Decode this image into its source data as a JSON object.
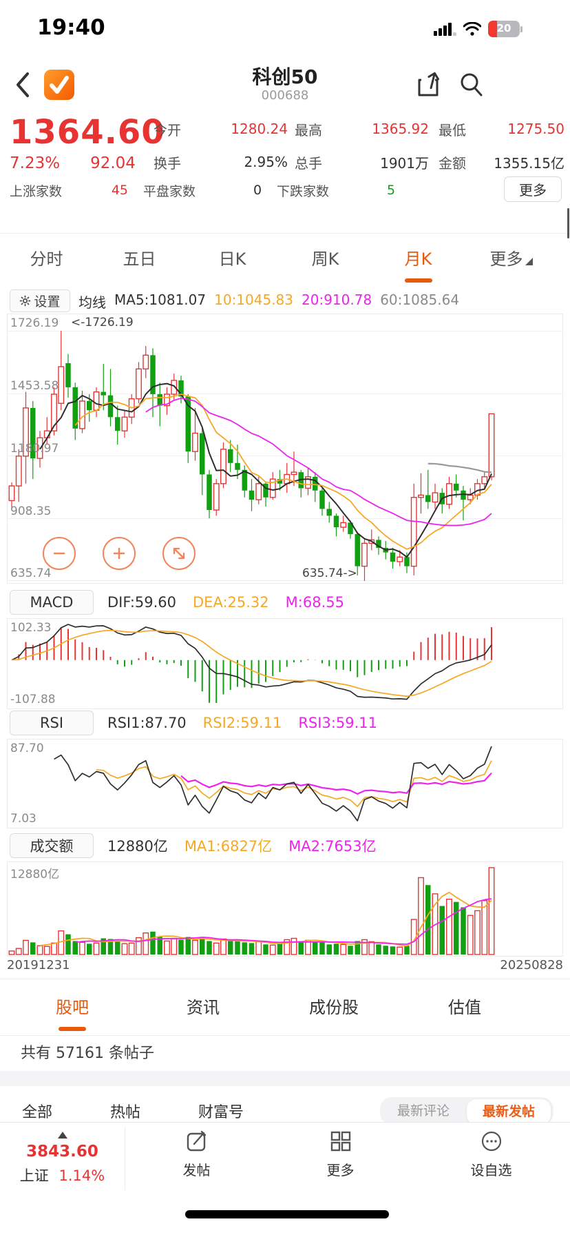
{
  "status_bar": {
    "time": "19:40",
    "battery_pct": "20"
  },
  "header": {
    "title": "科创50",
    "code": "000688"
  },
  "quote": {
    "price": "1364.60",
    "change_pct": "7.23%",
    "change": "92.04",
    "fields": [
      {
        "label": "今开",
        "value": "1280.24"
      },
      {
        "label": "最高",
        "value": "1365.92"
      },
      {
        "label": "最低",
        "value": "1275.50"
      },
      {
        "label": "换手",
        "value": "2.95%"
      },
      {
        "label": "总手",
        "value": "1901万"
      },
      {
        "label": "金额",
        "value": "1355.15亿"
      }
    ],
    "stats": [
      {
        "label": "上涨家数",
        "value": "45"
      },
      {
        "label": "平盘家数",
        "value": "0"
      },
      {
        "label": "下跌家数",
        "value": "5"
      }
    ],
    "more_label": "更多"
  },
  "period_tabs": {
    "items": [
      "分时",
      "五日",
      "日K",
      "周K",
      "月K",
      "更多"
    ],
    "active": "月K"
  },
  "ma_bar": {
    "settings_label": "设置",
    "group_label": "均线",
    "ma5": "MA5:1081.07",
    "ma10": "10:1045.83",
    "ma20": "20:910.78",
    "ma60": "60:1085.64"
  },
  "macd_header": {
    "button": "MACD",
    "dif": "DIF:59.60",
    "dea": "DEA:25.32",
    "m": "M:68.55",
    "ymax": "102.33",
    "ymin": "-107.88"
  },
  "rsi_header": {
    "button": "RSI",
    "rsi1": "RSI1:87.70",
    "rsi2": "RSI2:59.11",
    "rsi3": "RSI3:59.11",
    "ymax": "87.70",
    "ymin": "7.03"
  },
  "vol_header": {
    "button": "成交额",
    "current": "12880亿",
    "ma1": "MA1:6827亿",
    "ma2": "MA2:7653亿",
    "ylabel": "12880亿"
  },
  "section_tabs": {
    "items": [
      "股吧",
      "资讯",
      "成份股",
      "估值"
    ],
    "active": "股吧"
  },
  "posts": {
    "count_text": "共有 57161 条帖子"
  },
  "filter_bar": {
    "items": [
      "全部",
      "热帖",
      "财富号"
    ],
    "active": "全部",
    "sort_options": [
      "最新评论",
      "最新发帖"
    ],
    "sort_active": "最新发帖"
  },
  "bottom_bar": {
    "index_value": "3843.60",
    "index_name": "上证",
    "index_pct": "1.14%",
    "actions": [
      "发帖",
      "更多",
      "设自选"
    ]
  },
  "colors": {
    "red": "#e83333",
    "green": "#12a012",
    "accent_orange": "#e8590c",
    "ma10_orange": "#f7a823",
    "ma20_magenta": "#ee22ee",
    "ma60_gray": "#999999",
    "line_dark": "#2e2e2e"
  },
  "chart_data": {
    "type": "candlestick",
    "title": "科创50 月K",
    "date_start": "20191231",
    "date_end": "20250828",
    "y_axis_labels": [
      "1726.19",
      "1453.58",
      "1180.97",
      "908.35",
      "635.74"
    ],
    "y_range": [
      635.74,
      1726.19
    ],
    "high_annotation": "<-1726.19",
    "low_annotation": "635.74->",
    "legend": {
      "ma5": "dark",
      "ma10": "orange",
      "ma20": "magenta",
      "ma60": "gray"
    },
    "volume_max_yi": 12880,
    "candles_ohlcv": [
      [
        986,
        1065,
        955,
        1050,
        520
      ],
      [
        1050,
        1210,
        980,
        1180,
        900
      ],
      [
        1180,
        1460,
        1060,
        1390,
        2100
      ],
      [
        1390,
        1420,
        1080,
        1170,
        1800
      ],
      [
        1170,
        1290,
        1130,
        1260,
        1300
      ],
      [
        1260,
        1350,
        1230,
        1290,
        1200
      ],
      [
        1290,
        1480,
        1270,
        1450,
        1700
      ],
      [
        1410,
        1726.19,
        1380,
        1570,
        3500
      ],
      [
        1585,
        1625,
        1435,
        1480,
        3000
      ],
      [
        1480,
        1500,
        1250,
        1300,
        2000
      ],
      [
        1300,
        1465,
        1280,
        1420,
        1800
      ],
      [
        1420,
        1450,
        1330,
        1380,
        1600
      ],
      [
        1380,
        1480,
        1350,
        1460,
        1700
      ],
      [
        1460,
        1582,
        1380,
        1445,
        2400
      ],
      [
        1445,
        1560,
        1310,
        1350,
        2300
      ],
      [
        1350,
        1400,
        1230,
        1290,
        1900
      ],
      [
        1290,
        1380,
        1260,
        1350,
        1600
      ],
      [
        1350,
        1450,
        1320,
        1430,
        1700
      ],
      [
        1430,
        1590,
        1410,
        1560,
        2500
      ],
      [
        1560,
        1660,
        1520,
        1620,
        3200
      ],
      [
        1620,
        1650,
        1350,
        1450,
        3400
      ],
      [
        1450,
        1500,
        1310,
        1400,
        2600
      ],
      [
        1400,
        1480,
        1360,
        1450,
        2000
      ],
      [
        1450,
        1540,
        1420,
        1510,
        2400
      ],
      [
        1510,
        1530,
        1410,
        1440,
        2200
      ],
      [
        1440,
        1450,
        1150,
        1200,
        2600
      ],
      [
        1200,
        1390,
        1160,
        1280,
        2100
      ],
      [
        1280,
        1300,
        1010,
        1100,
        2500
      ],
      [
        1100,
        1120,
        908.35,
        945,
        2000
      ],
      [
        945,
        1080,
        920,
        1060,
        1700
      ],
      [
        1060,
        1240,
        1040,
        1210,
        2300
      ],
      [
        1210,
        1250,
        1110,
        1150,
        2000
      ],
      [
        1150,
        1230,
        1080,
        1120,
        2100
      ],
      [
        1120,
        1140,
        1000,
        1030,
        1800
      ],
      [
        1030,
        1080,
        940,
        990,
        1700
      ],
      [
        990,
        1090,
        970,
        1060,
        1900
      ],
      [
        1060,
        1070,
        960,
        1000,
        1500
      ],
      [
        1000,
        1110,
        990,
        1080,
        1400
      ],
      [
        1080,
        1120,
        1030,
        1060,
        1600
      ],
      [
        1060,
        1150,
        1020,
        1100,
        2200
      ],
      [
        1100,
        1200,
        1050,
        1110,
        2400
      ],
      [
        1110,
        1120,
        1000,
        1040,
        2000
      ],
      [
        1040,
        1130,
        1010,
        1090,
        2100
      ],
      [
        1090,
        1110,
        980,
        1030,
        1900
      ],
      [
        1030,
        1040,
        920,
        950,
        1800
      ],
      [
        950,
        980,
        890,
        920,
        1500
      ],
      [
        920,
        930,
        830,
        870,
        1600
      ],
      [
        870,
        920,
        850,
        890,
        1500
      ],
      [
        890,
        900,
        820,
        840,
        1300
      ],
      [
        840,
        850,
        660,
        700,
        2000
      ],
      [
        700,
        820,
        635.74,
        800,
        2200
      ],
      [
        800,
        860,
        770,
        815,
        1900
      ],
      [
        815,
        830,
        750,
        780,
        1500
      ],
      [
        780,
        810,
        730,
        760,
        1300
      ],
      [
        760,
        780,
        690,
        720,
        1200
      ],
      [
        720,
        770,
        700,
        740,
        1100
      ],
      [
        740,
        760,
        670,
        700,
        1300
      ],
      [
        700,
        1060,
        660,
        1000,
        5200
      ],
      [
        1000,
        1105,
        930,
        1010,
        11400
      ],
      [
        1010,
        1120,
        950,
        980,
        10300
      ],
      [
        980,
        1060,
        950,
        1020,
        9000
      ],
      [
        1020,
        1040,
        930,
        970,
        7200
      ],
      [
        970,
        1090,
        950,
        1060,
        8200
      ],
      [
        1060,
        1100,
        1000,
        1030,
        7800
      ],
      [
        1030,
        1050,
        900,
        990,
        7000
      ],
      [
        990,
        1040,
        970,
        1010,
        5800
      ],
      [
        1010,
        1080,
        990,
        1060,
        6500
      ],
      [
        1060,
        1110,
        1040,
        1090,
        8000
      ],
      [
        1090,
        1365.92,
        1075,
        1364.6,
        12880
      ]
    ]
  }
}
